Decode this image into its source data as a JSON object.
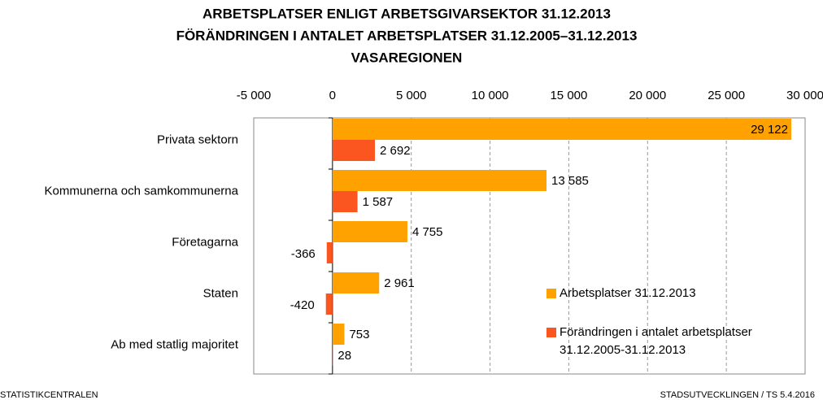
{
  "chart_data": {
    "type": "bar",
    "orientation": "horizontal",
    "title": [
      "ARBETSPLATSER  ENLIGT ARBETSGIVARSEKTOR  31.12.2013",
      "FÖRÄNDRINGEN I ANTALET ARBETSPLATSER 31.12.2005–31.12.2013",
      "VASAREGIONEN"
    ],
    "categories": [
      "Privata sektorn",
      "Kommunerna och samkommunerna",
      "Företagarna",
      "Staten",
      "Ab med statlig majoritet"
    ],
    "series": [
      {
        "name": "Arbetsplatser 31.12.2013",
        "color": "#ffa200",
        "values": [
          29122,
          13585,
          4755,
          2961,
          753
        ],
        "value_labels": [
          "29 122",
          "13 585",
          "4 755",
          "2 961",
          "753"
        ]
      },
      {
        "name": "Förändringen i antalet arbetsplatser 31.12.2005-31.12.2013",
        "color": "#fb5520",
        "values": [
          2692,
          1587,
          -366,
          -420,
          28
        ],
        "value_labels": [
          "2 692",
          "1 587",
          "-366",
          "-420",
          "28"
        ]
      }
    ],
    "xlim": [
      -5000,
      30000
    ],
    "xticks": [
      {
        "value": -5000,
        "label": "-5 000"
      },
      0,
      {
        "value": 5000,
        "label": "5 000"
      },
      {
        "value": 10000,
        "label": "10 000"
      },
      {
        "value": 15000,
        "label": "15 000"
      },
      {
        "value": 20000,
        "label": "20 000"
      },
      {
        "value": 25000,
        "label": "25 000"
      },
      {
        "value": 30000,
        "label": "30 000"
      }
    ],
    "grid": true,
    "legend": "lower right",
    "footer_left": "STATISTIKCENTRALEN",
    "footer_right": "STADSUTVECKLINGEN / TS 5.4.2016"
  }
}
